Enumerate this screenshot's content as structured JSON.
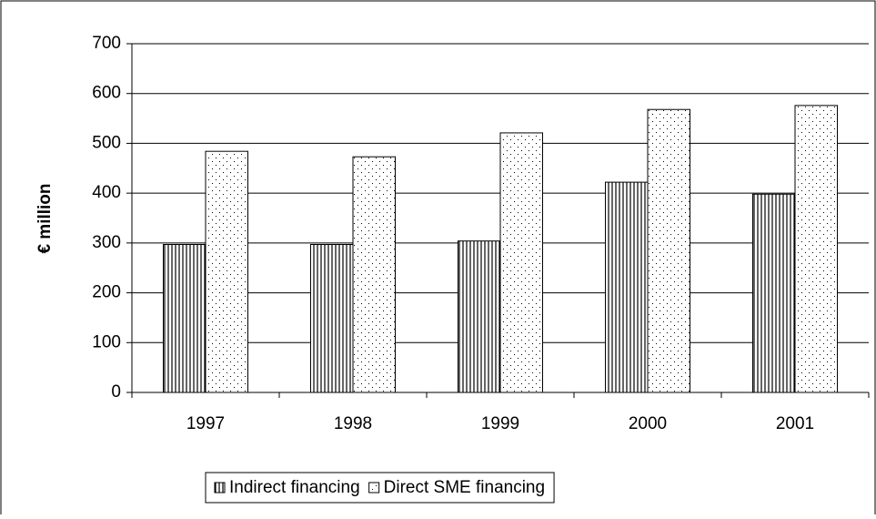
{
  "chart_data": {
    "type": "bar",
    "ylabel": "€ million",
    "categories": [
      "1997",
      "1998",
      "1999",
      "2000",
      "2001"
    ],
    "series": [
      {
        "name": "Indirect financing",
        "color": "#000000",
        "pattern": "vertical-lines",
        "values": [
          297,
          297,
          304,
          422,
          398
        ]
      },
      {
        "name": "Direct SME financing",
        "color": "#000000",
        "pattern": "dots",
        "values": [
          484,
          473,
          521,
          568,
          576
        ]
      }
    ],
    "ylim": [
      0,
      700
    ],
    "yticks": [
      0,
      100,
      200,
      300,
      400,
      500,
      600,
      700
    ],
    "grid": true,
    "legend": "bottom"
  }
}
